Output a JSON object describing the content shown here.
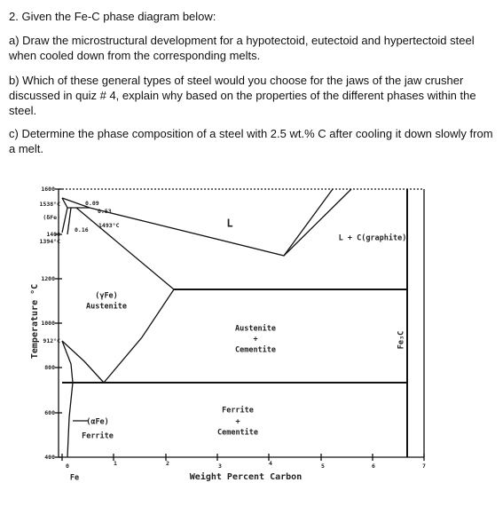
{
  "question": {
    "title": "2. Given the Fe-C phase diagram below:",
    "parts": [
      "a) Draw the microstructural development for a hypotectoid, eutectoid and hypertectoid steel when cooled down from the corresponding melts.",
      "b) Which of these general types of steel would you choose for the jaws of the jaw crusher discussed in quiz # 4, explain why based on the properties of the different phases within the steel.",
      "c) Determine the phase composition of a steel with 2.5 wt.% C after cooling it down slowly from a melt."
    ]
  },
  "diagram": {
    "y_axis_label": "Temperature °C",
    "x_axis_label": "Weight Percent Carbon",
    "y_tick_labels": [
      "1600",
      "1538°C",
      "(δFe)",
      "1400",
      "1394°C",
      "1200",
      "1000",
      "912°C",
      "800",
      "600",
      "400"
    ],
    "x_tick_labels": [
      "0",
      "1",
      "2",
      "3",
      "4",
      "5",
      "6",
      "7"
    ],
    "annotations": [
      "0.09",
      "0.53",
      "0.16",
      "1493°C"
    ],
    "regions": {
      "liquid": "L",
      "liquid_graphite": "L + C(graphite)",
      "gamma": "(γFe)",
      "austenite": "Austenite",
      "austenite_cementite": [
        "Austenite",
        "+",
        "Cementite"
      ],
      "ferrite_cementite": [
        "Ferrite",
        "+",
        "Cementite"
      ],
      "alpha": "(αFe)",
      "ferrite": "Ferrite",
      "fe": "Fe",
      "fe3c": "Fe₃C"
    }
  }
}
